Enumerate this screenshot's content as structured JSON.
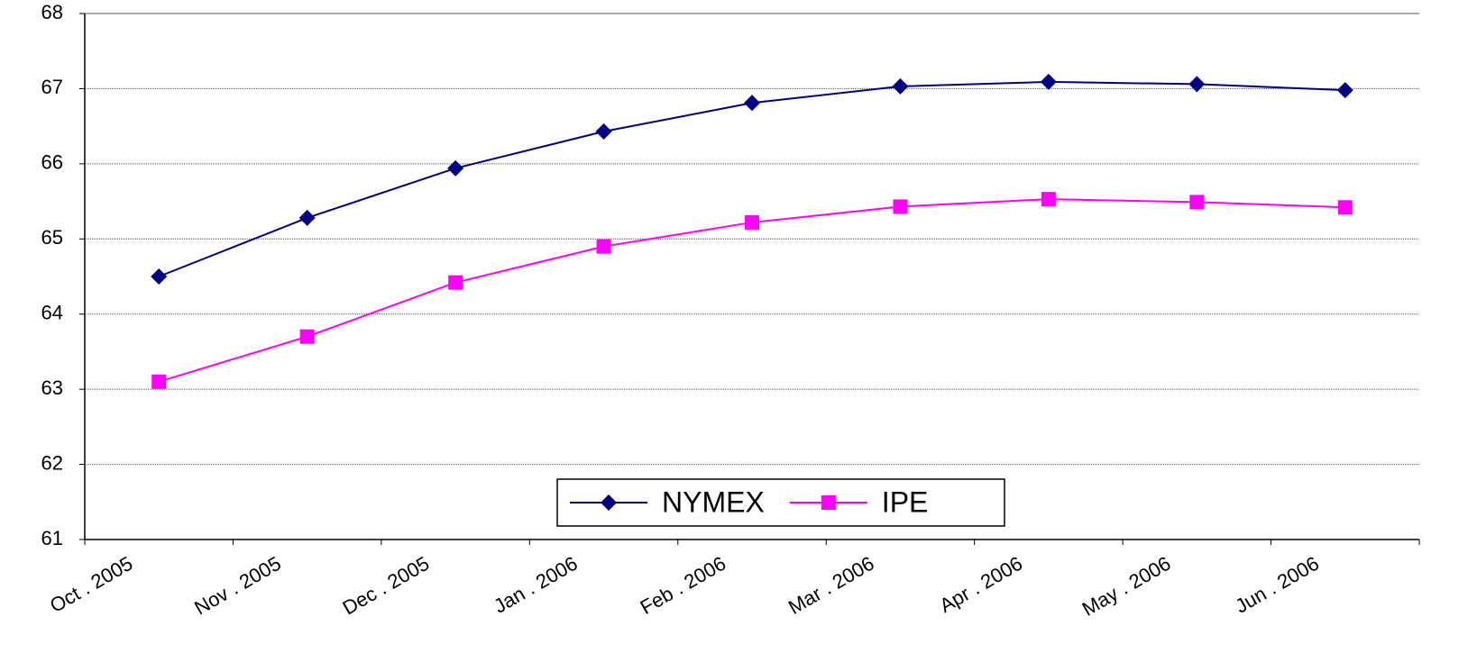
{
  "chart_data": {
    "type": "line",
    "categories": [
      "Oct . 2005",
      "Nov . 2005",
      "Dec . 2005",
      "Jan . 2006",
      "Feb . 2006",
      "Mar . 2006",
      "Apr . 2006",
      "May . 2006",
      "Jun . 2006"
    ],
    "series": [
      {
        "name": "NYMEX",
        "color": "#000080",
        "marker": "diamond",
        "values": [
          64.5,
          65.28,
          65.94,
          66.43,
          66.81,
          67.03,
          67.09,
          67.06,
          66.98
        ]
      },
      {
        "name": "IPE",
        "color": "#ff00ff",
        "marker": "square",
        "values": [
          63.1,
          63.7,
          64.42,
          64.9,
          65.22,
          65.43,
          65.53,
          65.49,
          65.42
        ]
      }
    ],
    "ylim": [
      61,
      68
    ],
    "yticks": [
      61,
      62,
      63,
      64,
      65,
      66,
      67,
      68
    ],
    "grid": true,
    "legend": "bottom"
  }
}
